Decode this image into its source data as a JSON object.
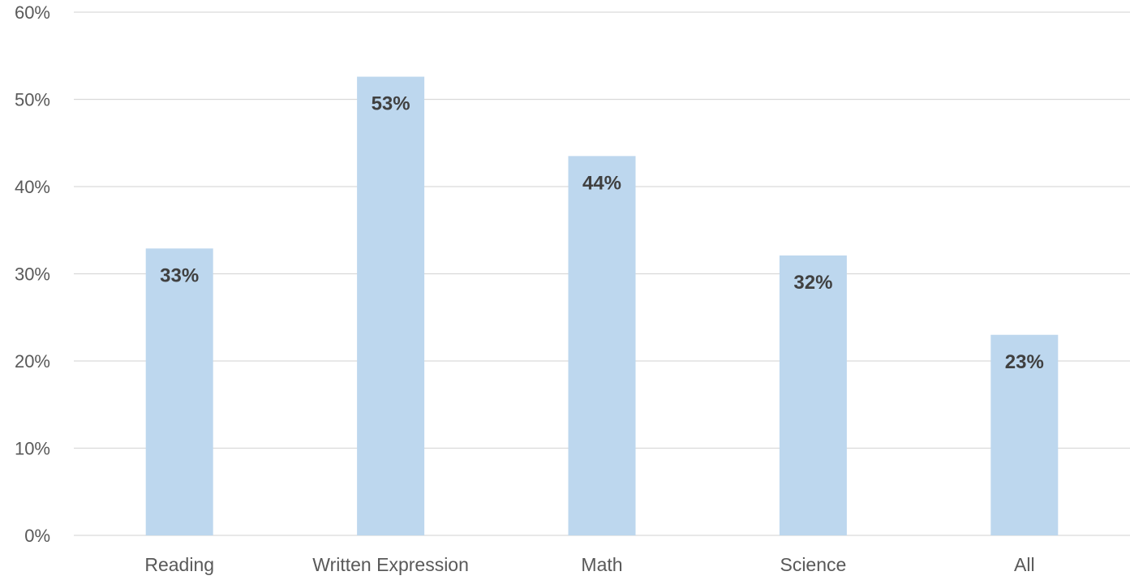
{
  "chart_data": {
    "type": "bar",
    "categories": [
      "Reading",
      "Written Expression",
      "Math",
      "Science",
      "All"
    ],
    "values": [
      33,
      53,
      44,
      32,
      23
    ],
    "plotted_values": [
      32.9,
      52.6,
      43.5,
      32.1,
      23.0
    ],
    "data_labels": [
      "33%",
      "53%",
      "44%",
      "32%",
      "23%"
    ],
    "ylim": [
      0,
      60
    ],
    "y_ticks": [
      0,
      10,
      20,
      30,
      40,
      50,
      60
    ],
    "y_tick_labels": [
      "0%",
      "10%",
      "20%",
      "30%",
      "40%",
      "50%",
      "60%"
    ],
    "title": "",
    "xlabel": "",
    "ylabel": "",
    "grid": true,
    "legend": "none",
    "colors": {
      "bar": "#bdd7ee",
      "grid": "#d9d9d9",
      "axis_text": "#595959",
      "data_label": "#404040"
    }
  }
}
